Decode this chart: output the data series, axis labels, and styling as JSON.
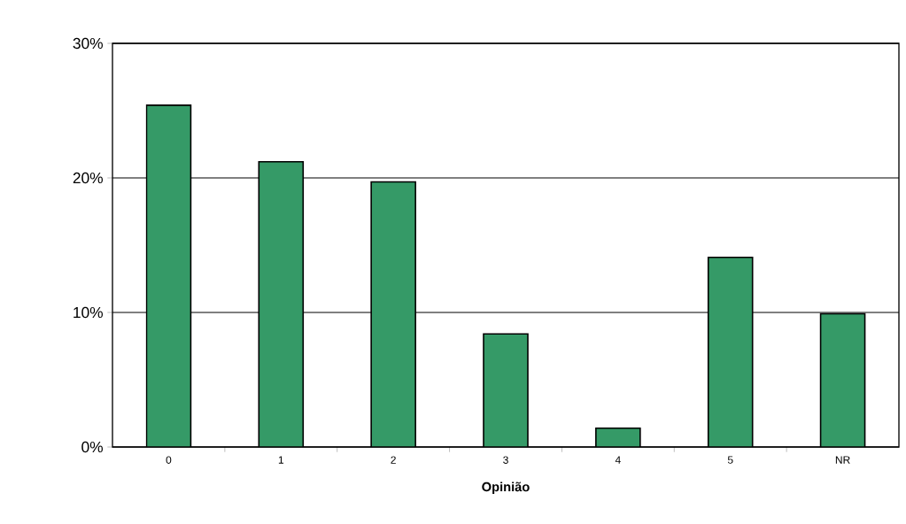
{
  "chart_data": {
    "type": "bar",
    "xlabel": "Opinião",
    "categories": [
      "0",
      "1",
      "2",
      "3",
      "4",
      "5",
      "NR"
    ],
    "values": [
      25.4,
      21.2,
      19.7,
      8.4,
      1.4,
      14.1,
      9.9
    ],
    "color": "#359a67",
    "ylim": [
      0,
      30
    ],
    "yticks": [
      {
        "value": 0,
        "label": "0%"
      },
      {
        "value": 10,
        "label": "10%"
      },
      {
        "value": 20,
        "label": "20%"
      },
      {
        "value": 30,
        "label": "30%"
      }
    ],
    "grid": "y"
  }
}
